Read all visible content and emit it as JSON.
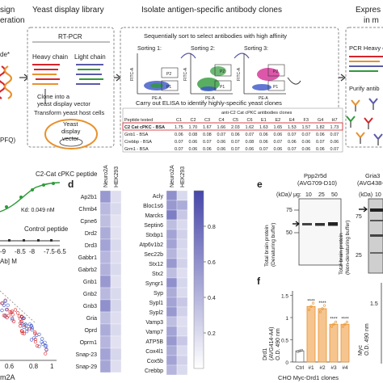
{
  "colors": {
    "orange": "#e8912d",
    "purple": "#5a5aa8",
    "red": "#d6242a",
    "blue": "#3a55c8",
    "green": "#2f9a3a",
    "pink": "#d63a9a",
    "bar_fill": "#f6c58f"
  },
  "top": {
    "cut_title_1": "sign",
    "cut_title_2": "eration",
    "cut_star": "de*",
    "cut_pfq": "PFQ)",
    "library_title": "Yeast display library",
    "rtpcr": "RT-PCR",
    "heavy": "Heavy chain",
    "light": "Light chain",
    "clone_line1": "Clone into a",
    "clone_line2": "yeast display vector",
    "transform": "Transform yeast host cells",
    "yeast_line1": "Yeast",
    "yeast_line2": "display",
    "yeast_line3": "vector",
    "isolate_title": "Isolate antigen-specific antibody clones",
    "sort_caption": "Sequentially sort to select antibodies with high affinity",
    "sorting1": "Sorting 1:",
    "sorting2": "Sorting 2:",
    "sorting3": "Sorting 3:",
    "fitc": "FITC-A",
    "pe": "PE-A",
    "p1": "P1",
    "p2": "P2",
    "elisa_caption": "Carry out ELISA to identify highly-specific yeast clones",
    "elisa_head": "anti-C2 Cat cPKC antibodies clones",
    "elisa_col0": "Peptide tested",
    "elisa_cols": [
      "C1",
      "C2",
      "C3",
      "C4",
      "C5",
      "C6",
      "E1",
      "E2",
      "E4",
      "F3",
      "G4",
      "H7"
    ],
    "elisa_rows": [
      {
        "label": "C2 Cat cPKC - BSA",
        "values": [
          "1.75",
          "1.70",
          "1.67",
          "1.66",
          "2.03",
          "1.62",
          "1.63",
          "1.65",
          "1.53",
          "1.57",
          "1.82",
          "1.73"
        ]
      },
      {
        "label": "Gnb1 - BSA",
        "values": [
          "0.06",
          "0.08",
          "0.08",
          "0.07",
          "0.06",
          "0.07",
          "0.06",
          "0.06",
          "0.07",
          "0.07",
          "0.06",
          "0.07"
        ]
      },
      {
        "label": "Crebbp - BSA",
        "values": [
          "0.07",
          "0.06",
          "0.07",
          "0.06",
          "0.07",
          "0.08",
          "0.06",
          "0.07",
          "0.06",
          "0.06",
          "0.07",
          "0.06"
        ]
      },
      {
        "label": "Grm1 - BSA",
        "values": [
          "0.07",
          "0.06",
          "0.06",
          "0.06",
          "0.07",
          "0.06",
          "0.07",
          "0.06",
          "0.07",
          "0.06",
          "0.06",
          "0.07"
        ]
      }
    ],
    "expr_title": "Expres",
    "expr_sub": "in m",
    "pcr_heavy": "PCR Heavy c",
    "purify": "Purify antib"
  },
  "panel_c": {
    "peptide_label": "C2-Cat cPKC peptide",
    "kd": "Kd: 0.049 nM",
    "control": "Control peptide",
    "xticks": [
      "-9",
      "-8.5",
      "-8",
      "-7.5",
      "-6.5"
    ],
    "xlabel_cut": "Ab] M",
    "bottom_ticks": [
      "0.6",
      "0.8",
      "1"
    ],
    "bottom_label": "m2A"
  },
  "panel_d": {
    "letter": "d",
    "col_labels": [
      "Neuro2A",
      "HEK293"
    ],
    "left_genes": [
      "Ap2b1",
      "Chmb4",
      "Cpne6",
      "Drd2",
      "Drd3",
      "Gabbr1",
      "Gabrb2",
      "Gnb1",
      "Gnb2",
      "Gnb3",
      "Gria",
      "Oprd",
      "Oprm1",
      "Snap-23",
      "Snap-29"
    ],
    "right_genes": [
      "Acly",
      "Bloc1s6",
      "Marcks",
      "Septin6",
      "Stxbp1",
      "Atp6v1b2",
      "Sec22b",
      "Stx12",
      "Stx2",
      "Syngr1",
      "Syp",
      "Sypl1",
      "Sypl2",
      "Vamp3",
      "Vamp7",
      "ATP5B",
      "Cox4l1",
      "Cox5b",
      "Crebbp"
    ],
    "left_values": [
      [
        0.55,
        0.18
      ],
      [
        0.38,
        0.2
      ],
      [
        0.35,
        0.15
      ],
      [
        0.45,
        0.16
      ],
      [
        0.5,
        0.2
      ],
      [
        0.4,
        0.18
      ],
      [
        0.42,
        0.2
      ],
      [
        0.55,
        0.16
      ],
      [
        0.38,
        0.2
      ],
      [
        0.6,
        0.22
      ],
      [
        0.35,
        0.18
      ],
      [
        0.45,
        0.2
      ],
      [
        0.4,
        0.16
      ],
      [
        0.5,
        0.22
      ],
      [
        0.48,
        0.18
      ]
    ],
    "right_values": [
      [
        0.6,
        0.2
      ],
      [
        0.55,
        0.45
      ],
      [
        0.7,
        0.3
      ],
      [
        0.35,
        0.2
      ],
      [
        0.5,
        0.25
      ],
      [
        0.5,
        0.22
      ],
      [
        0.4,
        0.2
      ],
      [
        0.55,
        0.25
      ],
      [
        0.35,
        0.18
      ],
      [
        0.6,
        0.22
      ],
      [
        0.45,
        0.2
      ],
      [
        0.5,
        0.3
      ],
      [
        0.55,
        0.25
      ],
      [
        0.35,
        0.18
      ],
      [
        0.5,
        0.2
      ],
      [
        0.55,
        0.3
      ],
      [
        0.45,
        0.2
      ],
      [
        0.5,
        0.25
      ],
      [
        0.4,
        0.2
      ]
    ],
    "scale_ticks": [
      "0.8",
      "0.6",
      "0.4",
      "0.2"
    ]
  },
  "panel_e": {
    "letter": "e",
    "blot1_title1": "Ppp2r5d",
    "blot1_title2": "(AVG709-D10)",
    "blot2_title1": "Gria3",
    "blot2_title2": "(AVG438-E6)",
    "lanes_hdr": "(kDa)/ μg:",
    "lanes": [
      "10",
      "25",
      "50"
    ],
    "markers": [
      "75",
      "50",
      "25"
    ],
    "ylabel1_a": "Total brain protein",
    "ylabel1_b": "(Denaturing buffer)",
    "ylabel2_a": "Total brain protein",
    "ylabel2_b": "(Non-denaturing buffer)",
    "lanes2_hdr": "(kDa)",
    "lanes2_first": "10"
  },
  "panel_f": {
    "letter": "f",
    "ylabel_a": "Drd1",
    "ylabel_b": "(AVG414-A4)",
    "ylabel_c": "O.D. 490 nm",
    "yticks": [
      "1.5",
      "1",
      "0.5",
      "0"
    ],
    "categories": [
      "Ctrl",
      "#1",
      "#2",
      "#3",
      "#4"
    ],
    "values": [
      0.25,
      1.25,
      1.2,
      0.85,
      0.85
    ],
    "ylim": [
      0,
      1.6
    ],
    "stars": [
      "",
      "****",
      "****",
      "****",
      "****"
    ],
    "xlabel": "CHO Myc-Drd1 clones",
    "right_label_a": "Myc",
    "right_label_b": "O.D. 490 nm",
    "right_tick": "1.5"
  }
}
